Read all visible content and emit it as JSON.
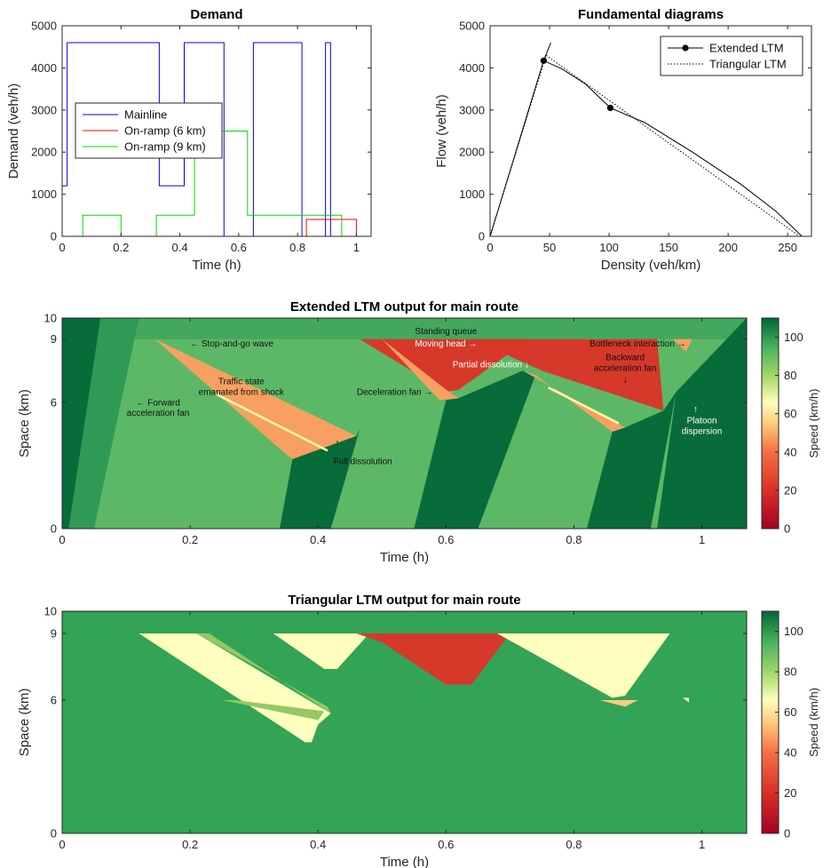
{
  "chart_data": [
    {
      "id": "demand",
      "type": "line",
      "title": "Demand",
      "xlabel": "Time (h)",
      "ylabel": "Demand (veh/h)",
      "xlim": [
        0,
        1.05
      ],
      "ylim": [
        0,
        5000
      ],
      "xticks": [
        0,
        0.2,
        0.4,
        0.6,
        0.8,
        1
      ],
      "xtick_labels": [
        "0",
        "0.2",
        "0.4",
        "0.6",
        "0.8",
        "1"
      ],
      "yticks": [
        0,
        1000,
        2000,
        3000,
        4000,
        5000
      ],
      "ytick_labels": [
        "0",
        "1000",
        "2000",
        "3000",
        "4000",
        "5000"
      ],
      "legend_position": "center-left",
      "series": [
        {
          "name": "Mainline",
          "color": "#0000ff",
          "x": [
            0,
            0.017,
            0.017,
            0.33,
            0.33,
            0.415,
            0.415,
            0.55,
            0.55,
            0.65,
            0.65,
            0.815,
            0.815,
            0.895,
            0.895,
            0.912,
            0.912,
            1.0
          ],
          "y": [
            1200,
            1200,
            4600,
            4600,
            1200,
            1200,
            4600,
            4600,
            0,
            0,
            4600,
            4600,
            0,
            0,
            4600,
            4600,
            0,
            0
          ]
        },
        {
          "name": "On-ramp (6 km)",
          "color": "#ff0000",
          "x": [
            0,
            0.83,
            0.83,
            1.0,
            1.0
          ],
          "y": [
            0,
            0,
            400,
            400,
            0
          ]
        },
        {
          "name": "On-ramp (9 km)",
          "color": "#00dd00",
          "x": [
            0,
            0.07,
            0.07,
            0.2,
            0.2,
            0.32,
            0.32,
            0.45,
            0.45,
            0.63,
            0.63,
            0.95,
            0.95,
            1.0
          ],
          "y": [
            0,
            0,
            500,
            500,
            0,
            0,
            500,
            500,
            2500,
            2500,
            500,
            500,
            0,
            0
          ]
        }
      ]
    },
    {
      "id": "fd",
      "type": "line",
      "title": "Fundamental diagrams",
      "xlabel": "Density (veh/km)",
      "ylabel": "Flow (veh/h)",
      "xlim": [
        0,
        270
      ],
      "ylim": [
        0,
        5000
      ],
      "xticks": [
        0,
        50,
        100,
        150,
        200,
        250
      ],
      "xtick_labels": [
        "0",
        "50",
        "100",
        "150",
        "200",
        "250"
      ],
      "yticks": [
        0,
        1000,
        2000,
        3000,
        4000,
        5000
      ],
      "ytick_labels": [
        "0",
        "1000",
        "2000",
        "3000",
        "4000",
        "5000"
      ],
      "legend_position": "top-right",
      "series": [
        {
          "name": "Extended LTM",
          "color": "#000000",
          "style": "solid",
          "marker": "circle",
          "x": [
            0,
            45,
            51,
            45,
            60,
            80,
            101,
            130,
            170,
            210,
            240,
            262
          ],
          "y": [
            0,
            4170,
            4600,
            4170,
            3980,
            3620,
            3050,
            2700,
            2000,
            1250,
            600,
            0
          ],
          "markers": [
            [
              45,
              4170
            ],
            [
              101,
              3050
            ]
          ]
        },
        {
          "name": "Triangular LTM",
          "color": "#000000",
          "style": "dotted",
          "x": [
            0,
            47,
            260
          ],
          "y": [
            0,
            4300,
            0
          ]
        }
      ]
    },
    {
      "id": "ext",
      "type": "heatmap",
      "title": "Extended LTM output for main route",
      "xlabel": "Time (h)",
      "ylabel": "Space (km)",
      "xlim": [
        0,
        1.07
      ],
      "ylim": [
        0,
        10
      ],
      "xticks": [
        0,
        0.2,
        0.4,
        0.6,
        0.8,
        1
      ],
      "xtick_labels": [
        "0",
        "0.2",
        "0.4",
        "0.6",
        "0.8",
        "1"
      ],
      "yticks": [
        0,
        6,
        9,
        10
      ],
      "ytick_labels": [
        "0",
        "6",
        "9",
        "10"
      ],
      "colorbar": {
        "label": "Speed (km/h)",
        "min": 0,
        "max": 110,
        "ticks": [
          "0",
          "20",
          "40",
          "60",
          "80",
          "100"
        ]
      },
      "background_speed": 95,
      "regions": [
        {
          "color": "#086b3a",
          "pts": [
            [
              0,
              10
            ],
            [
              0.09,
              10
            ],
            [
              0.02,
              0
            ],
            [
              0,
              0
            ]
          ]
        },
        {
          "color": "#2f9a55",
          "pts": [
            [
              0.06,
              10
            ],
            [
              0.12,
              10
            ],
            [
              0.05,
              0
            ],
            [
              0.01,
              0
            ]
          ]
        },
        {
          "color": "#f7a061",
          "pts": [
            [
              0.145,
              9
            ],
            [
              0.46,
              4.4
            ],
            [
              0.36,
              3.3
            ],
            [
              0.355,
              3.4
            ]
          ]
        },
        {
          "color": "#086b3a",
          "pts": [
            [
              0.36,
              3.3
            ],
            [
              0.46,
              4.4
            ],
            [
              0.465,
              4.7
            ],
            [
              0.42,
              0
            ],
            [
              0.34,
              0
            ]
          ]
        },
        {
          "color": "#d6382a",
          "pts": [
            [
              0.465,
              9
            ],
            [
              0.73,
              9
            ],
            [
              0.62,
              6.6
            ],
            [
              0.6,
              6.5
            ]
          ]
        },
        {
          "color": "#f7a061",
          "pts": [
            [
              0.5,
              9
            ],
            [
              0.6,
              6.6
            ],
            [
              0.62,
              6.2
            ],
            [
              0.59,
              6.1
            ]
          ]
        },
        {
          "color": "#086b3a",
          "pts": [
            [
              0.62,
              6.2
            ],
            [
              0.72,
              7.5
            ],
            [
              0.74,
              7.3
            ],
            [
              0.65,
              0
            ],
            [
              0.55,
              0
            ],
            [
              0.6,
              6.1
            ]
          ]
        },
        {
          "color": "#d6382a",
          "pts": [
            [
              0.64,
              9
            ],
            [
              0.93,
              9
            ],
            [
              0.94,
              5.6
            ],
            [
              0.75,
              7.5
            ]
          ]
        },
        {
          "color": "#f7a061",
          "pts": [
            [
              0.72,
              7.5
            ],
            [
              0.88,
              4.8
            ],
            [
              0.86,
              4.6
            ],
            [
              0.74,
              7.3
            ]
          ]
        },
        {
          "color": "#086b3a",
          "pts": [
            [
              0.88,
              4.8
            ],
            [
              0.94,
              5.6
            ],
            [
              0.96,
              6.5
            ],
            [
              0.92,
              0
            ],
            [
              0.82,
              0
            ],
            [
              0.86,
              4.6
            ]
          ]
        },
        {
          "color": "#086b3a",
          "pts": [
            [
              0.96,
              6.5
            ],
            [
              1.07,
              10
            ],
            [
              1.07,
              0
            ],
            [
              0.93,
              0
            ]
          ]
        },
        {
          "color": "#f7a061",
          "pts": [
            [
              0.955,
              9
            ],
            [
              0.985,
              9
            ],
            [
              0.975,
              8.4
            ]
          ]
        }
      ],
      "lines": [
        {
          "color": "#fff6a8",
          "pts": [
            [
              0.24,
              6.4
            ],
            [
              0.415,
              3.7
            ]
          ]
        },
        {
          "color": "#fff6a8",
          "pts": [
            [
              0.76,
              6.7
            ],
            [
              0.87,
              5.0
            ]
          ]
        }
      ],
      "annotations": [
        {
          "text": "← Stop-and-go wave",
          "x": 0.2,
          "y": 8.65,
          "anchor": "start",
          "color": "dark"
        },
        {
          "text": "Traffic state",
          "x": 0.28,
          "y": 6.85,
          "anchor": "middle",
          "color": "dark"
        },
        {
          "text": "emanated from shock",
          "x": 0.28,
          "y": 6.35,
          "anchor": "middle",
          "color": "dark"
        },
        {
          "text": "← Forward",
          "x": 0.15,
          "y": 5.85,
          "anchor": "middle",
          "color": "dark"
        },
        {
          "text": "acceleration fan",
          "x": 0.15,
          "y": 5.35,
          "anchor": "middle",
          "color": "dark"
        },
        {
          "text": "↑",
          "x": 0.43,
          "y": 3.95,
          "anchor": "middle",
          "color": "dark"
        },
        {
          "text": "Full dissolution",
          "x": 0.47,
          "y": 3.05,
          "anchor": "middle",
          "color": "dark"
        },
        {
          "text": "Standing queue",
          "x": 0.6,
          "y": 9.25,
          "anchor": "middle",
          "color": "dark"
        },
        {
          "text": "Moving head →",
          "x": 0.6,
          "y": 8.65,
          "anchor": "middle",
          "color": "light"
        },
        {
          "text": "Partial dissolution ↓",
          "x": 0.67,
          "y": 7.65,
          "anchor": "middle",
          "color": "light"
        },
        {
          "text": "Deceleration fan →",
          "x": 0.52,
          "y": 6.35,
          "anchor": "middle",
          "color": "dark"
        },
        {
          "text": "Bottleneck interaction →",
          "x": 0.9,
          "y": 8.65,
          "anchor": "middle",
          "color": "dark"
        },
        {
          "text": "Backward",
          "x": 0.88,
          "y": 8.0,
          "anchor": "middle",
          "color": "dark"
        },
        {
          "text": "acceleration fan",
          "x": 0.88,
          "y": 7.5,
          "anchor": "middle",
          "color": "dark"
        },
        {
          "text": "↓",
          "x": 0.88,
          "y": 6.95,
          "anchor": "middle",
          "color": "dark"
        },
        {
          "text": "↑",
          "x": 0.99,
          "y": 5.55,
          "anchor": "middle",
          "color": "light"
        },
        {
          "text": "Platoon",
          "x": 1.0,
          "y": 5.0,
          "anchor": "middle",
          "color": "light"
        },
        {
          "text": "dispersion",
          "x": 1.0,
          "y": 4.5,
          "anchor": "middle",
          "color": "light"
        }
      ]
    },
    {
      "id": "tri",
      "type": "heatmap",
      "title": "Triangular LTM output for main route",
      "xlabel": "Time (h)",
      "ylabel": "Space (km)",
      "xlim": [
        0,
        1.07
      ],
      "ylim": [
        0,
        10
      ],
      "xticks": [
        0,
        0.2,
        0.4,
        0.6,
        0.8,
        1
      ],
      "xtick_labels": [
        "0",
        "0.2",
        "0.4",
        "0.6",
        "0.8",
        "1"
      ],
      "yticks": [
        0,
        6,
        9,
        10
      ],
      "ytick_labels": [
        "0",
        "6",
        "9",
        "10"
      ],
      "colorbar": {
        "label": "Speed (km/h)",
        "min": 0,
        "max": 110,
        "ticks": [
          "0",
          "20",
          "40",
          "60",
          "80",
          "100"
        ]
      },
      "background_speed": 95,
      "regions": [
        {
          "color": "#fdfdbd",
          "pts": [
            [
              0.12,
              9
            ],
            [
              0.21,
              9
            ],
            [
              0.42,
              5.4
            ],
            [
              0.4,
              4.9
            ],
            [
              0.39,
              4.1
            ],
            [
              0.38,
              4.1
            ]
          ]
        },
        {
          "color": "#93c864",
          "pts": [
            [
              0.21,
              9
            ],
            [
              0.23,
              9
            ],
            [
              0.42,
              5.4
            ],
            [
              0.415,
              5.7
            ]
          ]
        },
        {
          "color": "#93c864",
          "pts": [
            [
              0.25,
              6
            ],
            [
              0.27,
              6
            ],
            [
              0.41,
              5.5
            ],
            [
              0.4,
              5.1
            ]
          ]
        },
        {
          "color": "#fdfdbd",
          "pts": [
            [
              0.33,
              9
            ],
            [
              0.48,
              9
            ],
            [
              0.43,
              7.4
            ],
            [
              0.41,
              7.4
            ]
          ]
        },
        {
          "color": "#d6382a",
          "pts": [
            [
              0.46,
              9
            ],
            [
              0.7,
              9
            ],
            [
              0.64,
              6.7
            ],
            [
              0.6,
              6.7
            ],
            [
              0.5,
              8.6
            ]
          ]
        },
        {
          "color": "#fdfdbd",
          "pts": [
            [
              0.68,
              9
            ],
            [
              0.95,
              9
            ],
            [
              0.88,
              6.2
            ],
            [
              0.86,
              6.1
            ],
            [
              0.73,
              8.2
            ]
          ]
        },
        {
          "color": "#fdcb7e",
          "pts": [
            [
              0.84,
              6
            ],
            [
              0.9,
              6
            ],
            [
              0.88,
              5.7
            ]
          ]
        },
        {
          "color": "#fdfdbd",
          "pts": [
            [
              0.97,
              6.1
            ],
            [
              0.98,
              6.1
            ],
            [
              0.98,
              5.9
            ]
          ]
        }
      ],
      "lines": [],
      "annotations": []
    }
  ]
}
